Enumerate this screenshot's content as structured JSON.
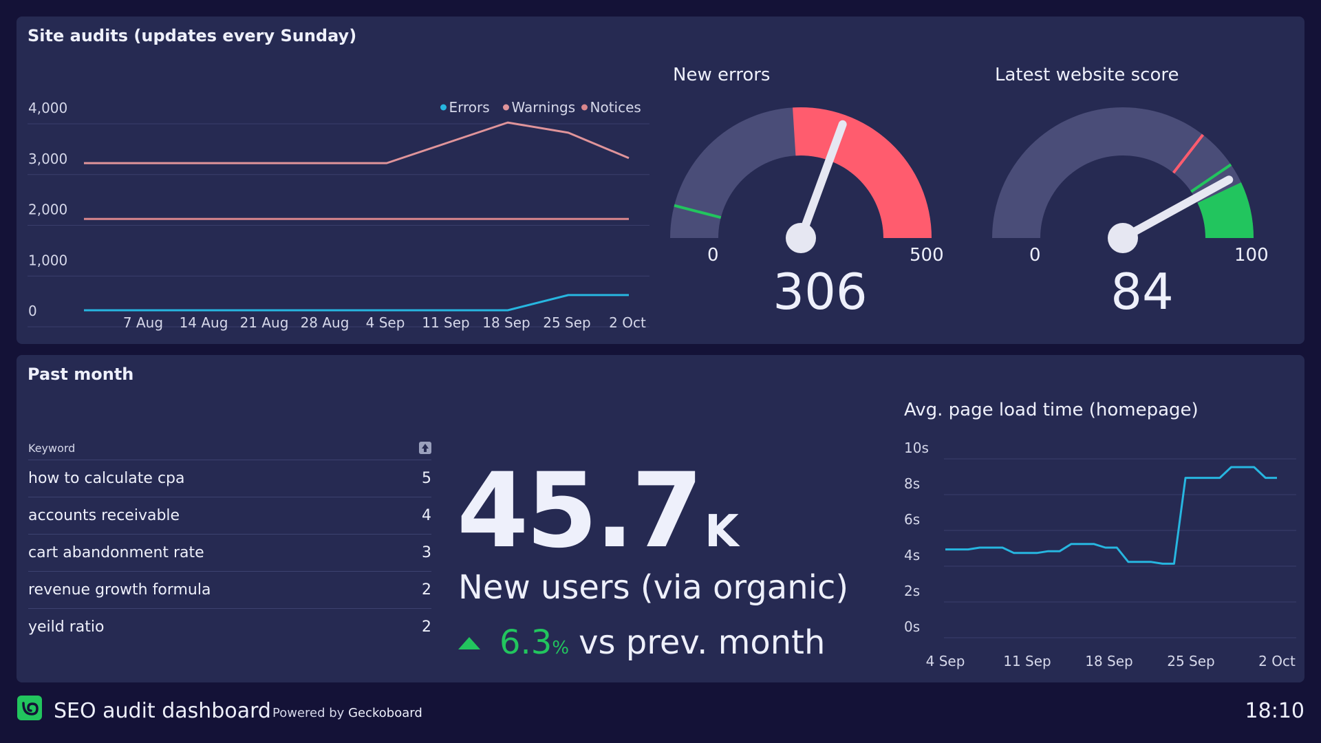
{
  "site_audits": {
    "title": "Site audits (updates every Sunday)"
  },
  "new_errors": {
    "title": "New errors",
    "min_label": "0",
    "max_label": "500",
    "value_label": "306",
    "min": 0,
    "max": 500,
    "value": 306,
    "green_marker": 40,
    "red_start": 240,
    "colors": {
      "track": "#4a4d78",
      "red": "#ff5c6e",
      "green": "#22c55e"
    }
  },
  "website_score": {
    "title": "Latest website score",
    "min_label": "0",
    "max_label": "100",
    "value_label": "84",
    "min": 0,
    "max": 100,
    "value": 84,
    "red_marker": 71,
    "green_marker": 81,
    "green_start": 86,
    "colors": {
      "track": "#4a4d78",
      "red": "#ff5c6e",
      "green": "#22c55e"
    }
  },
  "past_month": {
    "title": "Past month"
  },
  "keywords": {
    "header": "Keyword",
    "rows": [
      {
        "keyword": "how to calculate cpa",
        "count": "5"
      },
      {
        "keyword": "accounts receivable",
        "count": "4"
      },
      {
        "keyword": "cart abandonment rate",
        "count": "3"
      },
      {
        "keyword": "revenue growth formula",
        "count": "2"
      },
      {
        "keyword": "yeild ratio",
        "count": "2"
      }
    ]
  },
  "new_users": {
    "value": "45.7",
    "suffix": "K",
    "label": "New users (via organic)",
    "delta_value": "6.3",
    "delta_unit": "%",
    "delta_label": "vs prev. month",
    "delta_color": "#22c55e"
  },
  "footer": {
    "title": "SEO audit dashboard",
    "powered_prefix": "Powered by",
    "powered_brand": "Geckoboard",
    "time": "18:10"
  },
  "chart_data": [
    {
      "type": "line",
      "title": "",
      "x_tick_labels": [
        "7 Aug",
        "14 Aug",
        "21 Aug",
        "28 Aug",
        "4 Sep",
        "11 Sep",
        "18 Sep",
        "25 Sep",
        "2 Oct"
      ],
      "x": [
        "31 Jul",
        "7 Aug",
        "14 Aug",
        "21 Aug",
        "28 Aug",
        "4 Sep",
        "11 Sep",
        "18 Sep",
        "25 Sep",
        "2 Oct"
      ],
      "y_tick_labels": [
        "4,000",
        "3,000",
        "2,000",
        "1,000",
        "0"
      ],
      "ylim": [
        0,
        4000
      ],
      "legend": "top-right",
      "grid": true,
      "series": [
        {
          "name": "Errors",
          "color": "#27b6e0",
          "values": [
            0,
            0,
            0,
            0,
            0,
            0,
            0,
            0,
            300,
            300
          ]
        },
        {
          "name": "Warnings",
          "color": "#e0949a",
          "values": [
            2900,
            2900,
            2900,
            2900,
            2900,
            2900,
            3300,
            3700,
            3500,
            3000
          ]
        },
        {
          "name": "Notices",
          "color": "#d9868c",
          "values": [
            1800,
            1800,
            1800,
            1800,
            1800,
            1800,
            1800,
            1800,
            1800,
            1800
          ]
        }
      ]
    },
    {
      "type": "line",
      "title": "Avg. page load time (homepage)",
      "x_tick_labels": [
        "4 Sep",
        "11 Sep",
        "18 Sep",
        "25 Sep",
        "2 Oct"
      ],
      "y_tick_labels": [
        "10s",
        "8s",
        "6s",
        "4s",
        "2s",
        "0s"
      ],
      "ylim": [
        0,
        10
      ],
      "grid": true,
      "series": [
        {
          "color": "#27b6e0",
          "values": [
            4.9,
            4.9,
            4.9,
            5.0,
            5.0,
            5.0,
            4.7,
            4.7,
            4.7,
            4.8,
            4.8,
            5.2,
            5.2,
            5.2,
            5.0,
            5.0,
            4.2,
            4.2,
            4.2,
            4.1,
            4.1,
            8.9,
            8.9,
            8.9,
            8.9,
            9.5,
            9.5,
            9.5,
            8.9,
            8.9
          ]
        }
      ]
    }
  ]
}
